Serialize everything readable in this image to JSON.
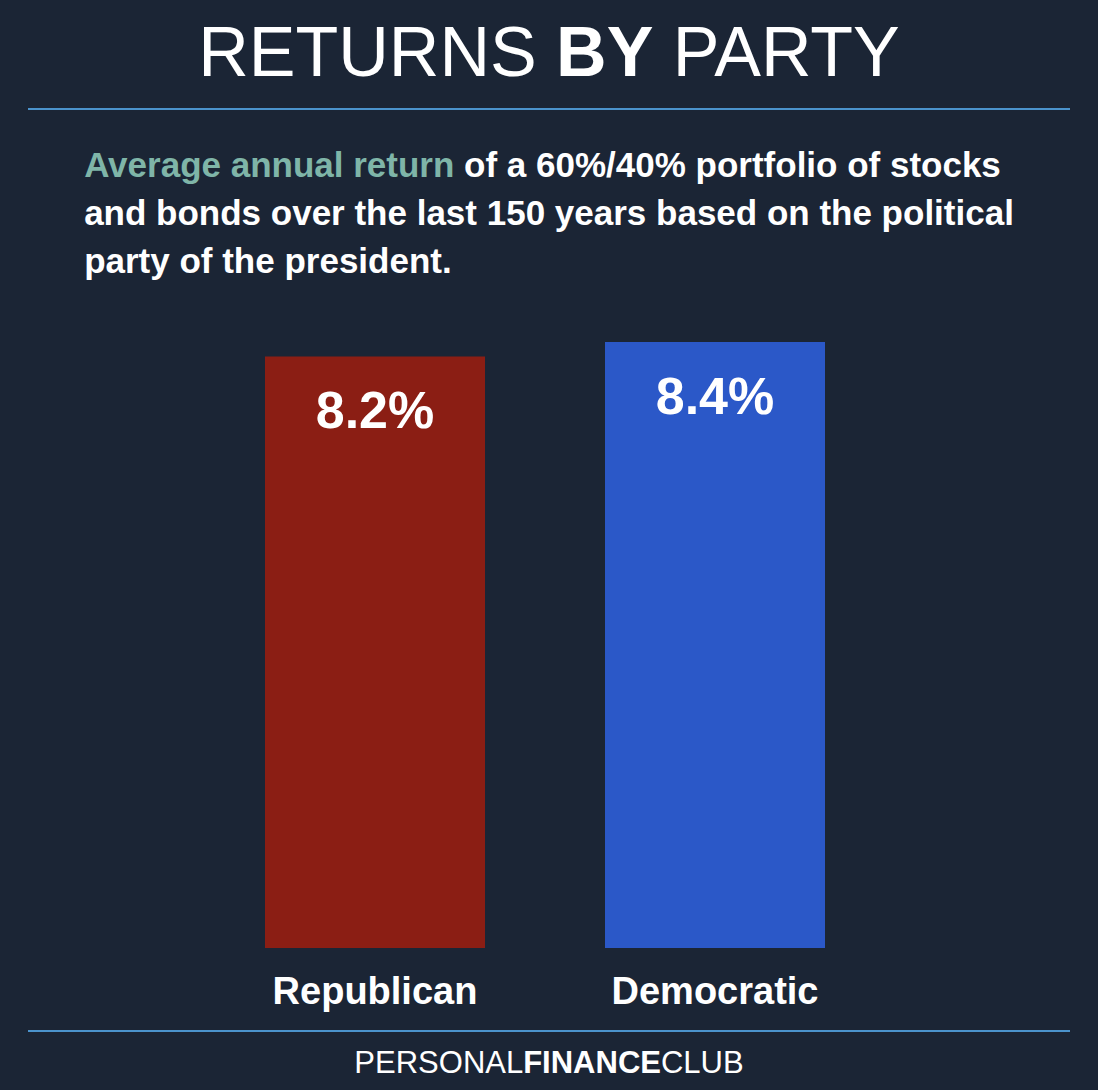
{
  "chart_data": {
    "type": "bar",
    "title": "RETURNS BY PARTY",
    "subtitle": "Average annual return of a 60%/40% portfolio of stocks and bonds over the last 150 years based on the political party of the president.",
    "categories": [
      "Republican",
      "Democratic"
    ],
    "values": [
      8.2,
      8.4
    ],
    "value_labels": [
      "8.2%",
      "8.4%"
    ],
    "colors": [
      "#8b1e14",
      "#2b58c8"
    ],
    "ylim": [
      0,
      8.4
    ],
    "data_labels": true,
    "tick_labels": "x",
    "grid": false,
    "footer": [
      "PERSONAL",
      "FINANCE",
      "CLUB"
    ]
  }
}
